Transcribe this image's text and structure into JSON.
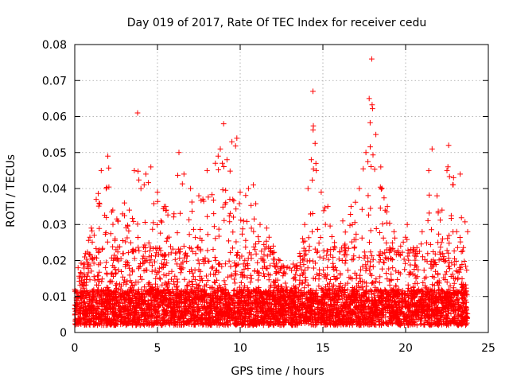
{
  "chart_data": {
    "type": "scatter",
    "title": "Day 019 of 2017, Rate Of TEC Index for receiver cedu",
    "xlabel": "GPS time / hours",
    "ylabel": "ROTI / TECUs",
    "xlim": [
      0,
      25
    ],
    "ylim": [
      0,
      0.08
    ],
    "x_ticks": [
      0,
      5,
      10,
      15,
      20,
      25
    ],
    "x_tick_labels": [
      "0",
      "5",
      "10",
      "15",
      "20",
      "25"
    ],
    "y_ticks": [
      0,
      0.01,
      0.02,
      0.03,
      0.04,
      0.05,
      0.06,
      0.07,
      0.08
    ],
    "y_tick_labels": [
      "0",
      "0.01",
      "0.02",
      "0.03",
      "0.04",
      "0.05",
      "0.06",
      "0.07",
      "0.08"
    ],
    "grid": true,
    "marker": "+",
    "marker_color": "#ff0000",
    "data_x_range": [
      0,
      23.75
    ],
    "envelope": [
      [
        0.0,
        0.012
      ],
      [
        0.2,
        0.018
      ],
      [
        0.6,
        0.021
      ],
      [
        1.0,
        0.029
      ],
      [
        1.3,
        0.037
      ],
      [
        1.6,
        0.045
      ],
      [
        1.9,
        0.04
      ],
      [
        2.0,
        0.049
      ],
      [
        2.3,
        0.034
      ],
      [
        2.6,
        0.031
      ],
      [
        3.0,
        0.036
      ],
      [
        3.3,
        0.034
      ],
      [
        3.6,
        0.045
      ],
      [
        3.8,
        0.061
      ],
      [
        4.0,
        0.04
      ],
      [
        4.3,
        0.044
      ],
      [
        4.6,
        0.046
      ],
      [
        5.0,
        0.039
      ],
      [
        5.5,
        0.035
      ],
      [
        6.0,
        0.033
      ],
      [
        6.3,
        0.05
      ],
      [
        6.6,
        0.044
      ],
      [
        7.0,
        0.04
      ],
      [
        7.5,
        0.038
      ],
      [
        8.0,
        0.045
      ],
      [
        8.5,
        0.047
      ],
      [
        8.8,
        0.051
      ],
      [
        9.0,
        0.058
      ],
      [
        9.2,
        0.048
      ],
      [
        9.5,
        0.053
      ],
      [
        9.8,
        0.054
      ],
      [
        10.0,
        0.039
      ],
      [
        10.5,
        0.04
      ],
      [
        10.8,
        0.041
      ],
      [
        11.2,
        0.03
      ],
      [
        11.6,
        0.029
      ],
      [
        12.0,
        0.024
      ],
      [
        12.4,
        0.02
      ],
      [
        12.8,
        0.018
      ],
      [
        13.2,
        0.019
      ],
      [
        13.6,
        0.022
      ],
      [
        13.9,
        0.03
      ],
      [
        14.1,
        0.04
      ],
      [
        14.3,
        0.048
      ],
      [
        14.4,
        0.067
      ],
      [
        14.6,
        0.045
      ],
      [
        14.9,
        0.039
      ],
      [
        15.3,
        0.035
      ],
      [
        15.7,
        0.025
      ],
      [
        16.2,
        0.031
      ],
      [
        16.7,
        0.035
      ],
      [
        17.2,
        0.04
      ],
      [
        17.6,
        0.05
      ],
      [
        17.8,
        0.065
      ],
      [
        17.95,
        0.076
      ],
      [
        18.2,
        0.055
      ],
      [
        18.5,
        0.046
      ],
      [
        18.9,
        0.035
      ],
      [
        19.3,
        0.028
      ],
      [
        19.7,
        0.024
      ],
      [
        20.1,
        0.03
      ],
      [
        20.5,
        0.023
      ],
      [
        21.0,
        0.028
      ],
      [
        21.4,
        0.045
      ],
      [
        21.6,
        0.051
      ],
      [
        21.9,
        0.038
      ],
      [
        22.2,
        0.034
      ],
      [
        22.5,
        0.045
      ],
      [
        22.6,
        0.052
      ],
      [
        22.9,
        0.043
      ],
      [
        23.3,
        0.044
      ],
      [
        23.75,
        0.028
      ]
    ],
    "baseline_range": [
      0.002,
      0.012
    ],
    "point_count": 5200
  }
}
